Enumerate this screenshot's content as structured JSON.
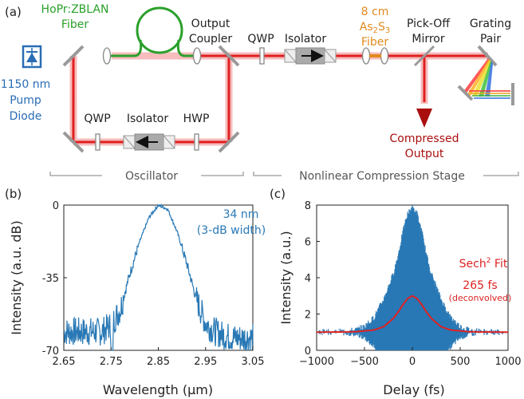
{
  "panel_a": {
    "label": "(a)",
    "pump": {
      "line1": "1150 nm",
      "line2": "Pump",
      "line3": "Diode"
    },
    "fiber": {
      "line1": "HoPr:ZBLAN",
      "line2": "Fiber"
    },
    "output_coupler": {
      "line1": "Output",
      "line2": "Coupler"
    },
    "qwp_top": "QWP",
    "isolator_top": "Isolator",
    "as2s3": {
      "line1": "8 cm",
      "line2": "As",
      "sub2": "2",
      "mid": "S",
      "sub3": "3",
      "line3": "Fiber"
    },
    "pickoff": {
      "line1": "Pick-Off",
      "line2": "Mirror"
    },
    "grating": {
      "line1": "Grating",
      "line2": "Pair"
    },
    "qwp_bottom": "QWP",
    "isolator_bottom": "Isolator",
    "hwp": "HWP",
    "compressed": {
      "line1": "Compressed",
      "line2": "Output"
    },
    "oscillator_label": "Oscillator",
    "compression_label": "Nonlinear Compression Stage"
  },
  "colors": {
    "beam": "#e02020",
    "beam_glow": "#f3a0a0",
    "pump": "#2a6db5",
    "fiber": "#2aa02a",
    "as2s3": "#e08a1e",
    "plot": "#2878b5",
    "fit": "#dd2222",
    "compressed_arrow": "#aa0f0f"
  },
  "chart_data": [
    {
      "panel": "(b)",
      "type": "line",
      "xlabel": "Wavelength (µm)",
      "ylabel": "Intensity (a.u. dB)",
      "xlim": [
        2.65,
        3.05
      ],
      "ylim": [
        -70,
        0
      ],
      "xticks": [
        "2.65",
        "2.75",
        "2.85",
        "2.95",
        "3.05"
      ],
      "yticks": [
        "0",
        "-35",
        "-70"
      ],
      "annotation": {
        "line1": "34 nm",
        "line2": "(3-dB width)"
      },
      "x": [
        2.65,
        2.7,
        2.73,
        2.75,
        2.77,
        2.79,
        2.81,
        2.83,
        2.85,
        2.87,
        2.89,
        2.91,
        2.93,
        2.95,
        2.97,
        2.99,
        3.01,
        3.05
      ],
      "y": [
        -61,
        -61,
        -61,
        -58,
        -50,
        -33,
        -18,
        -6,
        0,
        -2,
        -13,
        -28,
        -45,
        -57,
        -61,
        -63,
        -64,
        -64
      ]
    },
    {
      "panel": "(c)",
      "type": "line",
      "xlabel": "Delay (fs)",
      "ylabel": "Intensity (a.u.)",
      "xlim": [
        -1000,
        1000
      ],
      "ylim": [
        0,
        8
      ],
      "xticks": [
        "−1000",
        "−500",
        "0",
        "500",
        "1000"
      ],
      "yticks": [
        "0",
        "2",
        "4",
        "6",
        "8"
      ],
      "fit_label": "Sech",
      "fit_label_sup": "2",
      "fit_label_tail": " Fit",
      "fwhm_label": "265 fs",
      "fwhm_note": "(deconvolved)",
      "series": [
        {
          "name": "",
          "x": [
            -1000,
            -800,
            -600,
            -500,
            -400,
            -300,
            -200,
            -150,
            -100,
            -50,
            0,
            50,
            100,
            150,
            200,
            300,
            400,
            500,
            600,
            800,
            1000
          ],
          "y": [
            1.0,
            1.0,
            1.1,
            1.3,
            1.8,
            2.8,
            4.2,
            5.2,
            6.5,
            7.5,
            7.9,
            7.5,
            6.5,
            5.2,
            4.2,
            2.8,
            1.8,
            1.3,
            1.1,
            1.0,
            1.0
          ]
        },
        {
          "name": "Sech² Fit",
          "x": [
            -1000,
            -600,
            -400,
            -300,
            -200,
            -150,
            -100,
            -50,
            0,
            50,
            100,
            150,
            200,
            300,
            400,
            600,
            1000
          ],
          "y": [
            1.0,
            1.02,
            1.12,
            1.3,
            1.75,
            2.1,
            2.5,
            2.85,
            3.0,
            2.85,
            2.5,
            2.1,
            1.75,
            1.3,
            1.12,
            1.02,
            1.0
          ]
        }
      ]
    }
  ]
}
